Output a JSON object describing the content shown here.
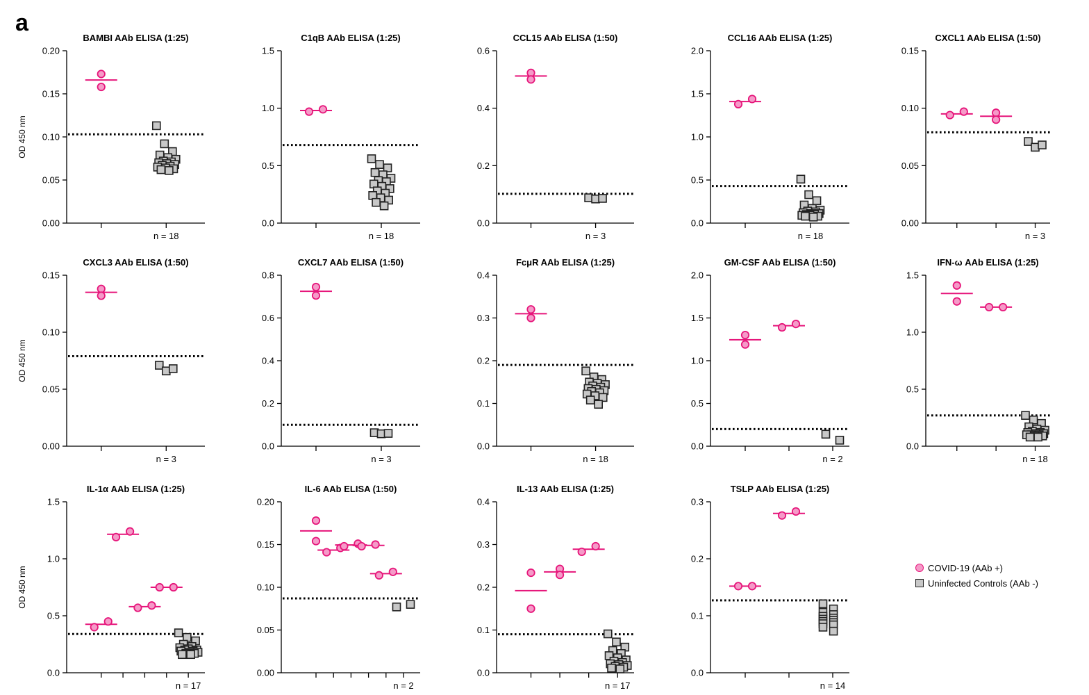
{
  "figure": {
    "panel_letter": "a"
  },
  "legend": {
    "covid_label": "COVID-19 (AAb +)",
    "control_label": "Uninfected Controls (AAb -)",
    "covid_color": "#e6157a",
    "covid_fill": "#f59ac8",
    "control_color": "#222222",
    "control_fill": "#c8c8c8"
  },
  "chart_data": [
    {
      "type": "scatter",
      "title": "BAMBI AAb ELISA (1:25)",
      "ylabel": "OD 450 nm",
      "ylim": [
        0,
        0.2
      ],
      "yticks": [
        "0.00",
        "0.05",
        "0.10",
        "0.15",
        "0.20"
      ],
      "xlabel": "n = 18",
      "threshold": 0.103,
      "groups": [
        {
          "kind": "covid",
          "points": [
            0.173,
            0.158
          ],
          "mean": 0.166
        }
      ],
      "controls": [
        0.113,
        0.092,
        0.083,
        0.079,
        0.076,
        0.074,
        0.072,
        0.071,
        0.07,
        0.069,
        0.068,
        0.067,
        0.066,
        0.065,
        0.064,
        0.063,
        0.062,
        0.061
      ]
    },
    {
      "type": "scatter",
      "title": "C1qB AAb ELISA (1:25)",
      "ylabel": "",
      "ylim": [
        0,
        1.5
      ],
      "yticks": [
        "0.0",
        "0.5",
        "1.0",
        "1.5"
      ],
      "xlabel": "n = 18",
      "threshold": 0.68,
      "groups": [
        {
          "kind": "covid",
          "points": [
            0.97,
            0.99
          ],
          "mean": 0.98,
          "pair": true
        }
      ],
      "controls": [
        0.56,
        0.51,
        0.48,
        0.44,
        0.42,
        0.39,
        0.37,
        0.36,
        0.34,
        0.32,
        0.3,
        0.28,
        0.26,
        0.24,
        0.22,
        0.2,
        0.18,
        0.15
      ]
    },
    {
      "type": "scatter",
      "title": "CCL15 AAb ELISA (1:50)",
      "ylabel": "",
      "ylim": [
        0,
        0.6
      ],
      "yticks": [
        "0.0",
        "0.2",
        "0.4",
        "0.6"
      ],
      "xlabel": "n = 3",
      "threshold": 0.102,
      "groups": [
        {
          "kind": "covid",
          "points": [
            0.523,
            0.5
          ],
          "mean": 0.512
        }
      ],
      "controls": [
        0.088,
        0.084,
        0.086
      ]
    },
    {
      "type": "scatter",
      "title": "CCL16 AAb ELISA (1:25)",
      "ylabel": "",
      "ylim": [
        0,
        2.0
      ],
      "yticks": [
        "0.0",
        "0.5",
        "1.0",
        "1.5",
        "2.0"
      ],
      "xlabel": "n = 18",
      "threshold": 0.43,
      "groups": [
        {
          "kind": "covid",
          "points": [
            1.38,
            1.44
          ],
          "mean": 1.41,
          "pair": true
        }
      ],
      "controls": [
        0.51,
        0.33,
        0.26,
        0.21,
        0.17,
        0.15,
        0.14,
        0.13,
        0.12,
        0.11,
        0.11,
        0.1,
        0.1,
        0.09,
        0.09,
        0.08,
        0.08,
        0.07
      ]
    },
    {
      "type": "scatter",
      "title": "CXCL1 AAb ELISA (1:50)",
      "ylabel": "",
      "ylim": [
        0,
        0.15
      ],
      "yticks": [
        "0.00",
        "0.05",
        "0.10",
        "0.15"
      ],
      "xlabel": "n = 3",
      "threshold": 0.079,
      "groups": [
        {
          "kind": "covid",
          "points": [
            0.094,
            0.097
          ],
          "mean": 0.095,
          "pair": true
        },
        {
          "kind": "covid",
          "points": [
            0.096,
            0.09
          ],
          "mean": 0.093
        }
      ],
      "controls": [
        0.071,
        0.066,
        0.068
      ]
    },
    {
      "type": "scatter",
      "title": "CXCL3 AAb ELISA (1:50)",
      "ylabel": "OD 450 nm",
      "ylim": [
        0,
        0.15
      ],
      "yticks": [
        "0.00",
        "0.05",
        "0.10",
        "0.15"
      ],
      "xlabel": "n = 3",
      "threshold": 0.079,
      "groups": [
        {
          "kind": "covid",
          "points": [
            0.138,
            0.132
          ],
          "mean": 0.135
        }
      ],
      "controls": [
        0.071,
        0.066,
        0.068
      ]
    },
    {
      "type": "scatter",
      "title": "CXCL7 AAb ELISA (1:50)",
      "ylabel": "",
      "ylim": [
        0,
        0.8
      ],
      "yticks": [
        "0.0",
        "0.2",
        "0.4",
        "0.6",
        "0.8"
      ],
      "xlabel": "n = 3",
      "threshold": 0.1,
      "groups": [
        {
          "kind": "covid",
          "points": [
            0.745,
            0.705
          ],
          "mean": 0.725
        }
      ],
      "controls": [
        0.063,
        0.058,
        0.06
      ]
    },
    {
      "type": "scatter",
      "title": "FcμR AAb ELISA (1:25)",
      "ylabel": "",
      "ylim": [
        0,
        0.4
      ],
      "yticks": [
        "0.0",
        "0.1",
        "0.2",
        "0.3",
        "0.4"
      ],
      "xlabel": "n = 18",
      "threshold": 0.19,
      "groups": [
        {
          "kind": "covid",
          "points": [
            0.32,
            0.3
          ],
          "mean": 0.31
        }
      ],
      "controls": [
        0.176,
        0.162,
        0.156,
        0.15,
        0.147,
        0.144,
        0.141,
        0.138,
        0.135,
        0.133,
        0.13,
        0.128,
        0.125,
        0.122,
        0.118,
        0.114,
        0.108,
        0.098
      ]
    },
    {
      "type": "scatter",
      "title": "GM-CSF AAb ELISA (1:50)",
      "ylabel": "",
      "ylim": [
        0,
        2.0
      ],
      "yticks": [
        "0.0",
        "0.5",
        "1.0",
        "1.5",
        "2.0"
      ],
      "xlabel": "n = 2",
      "threshold": 0.2,
      "groups": [
        {
          "kind": "covid",
          "points": [
            1.3,
            1.19
          ],
          "mean": 1.245
        },
        {
          "kind": "covid",
          "points": [
            1.39,
            1.43
          ],
          "mean": 1.41,
          "pair": true
        }
      ],
      "controls": [
        0.14,
        0.07
      ]
    },
    {
      "type": "scatter",
      "title": "IFN-ω AAb ELISA (1:25)",
      "ylabel": "",
      "ylim": [
        0,
        1.5
      ],
      "yticks": [
        "0.0",
        "0.5",
        "1.0",
        "1.5"
      ],
      "xlabel": "n = 18",
      "threshold": 0.27,
      "groups": [
        {
          "kind": "covid",
          "points": [
            1.41,
            1.27
          ],
          "mean": 1.34
        },
        {
          "kind": "covid",
          "points": [
            1.22,
            1.22
          ],
          "mean": 1.22,
          "pair": true
        }
      ],
      "controls": [
        0.27,
        0.23,
        0.2,
        0.17,
        0.15,
        0.14,
        0.13,
        0.12,
        0.12,
        0.11,
        0.11,
        0.1,
        0.1,
        0.1,
        0.09,
        0.09,
        0.08,
        0.08
      ]
    },
    {
      "type": "scatter",
      "title": "IL-1α AAb ELISA (1:25)",
      "ylabel": "OD 450 nm",
      "ylim": [
        0,
        1.5
      ],
      "yticks": [
        "0.0",
        "0.5",
        "1.0",
        "1.5"
      ],
      "xlabel": "n = 17",
      "threshold": 0.34,
      "groups": [
        {
          "kind": "covid",
          "points": [
            0.4,
            0.45
          ],
          "mean": 0.425,
          "pair": true
        },
        {
          "kind": "covid",
          "points": [
            1.19,
            1.24
          ],
          "mean": 1.215,
          "pair": true
        },
        {
          "kind": "covid",
          "points": [
            0.57,
            0.59
          ],
          "mean": 0.58,
          "pair": true
        },
        {
          "kind": "covid",
          "points": [
            0.75,
            0.75
          ],
          "mean": 0.75,
          "pair": true
        }
      ],
      "controls": [
        0.35,
        0.31,
        0.28,
        0.25,
        0.23,
        0.22,
        0.21,
        0.2,
        0.2,
        0.19,
        0.19,
        0.18,
        0.18,
        0.17,
        0.17,
        0.16,
        0.16
      ]
    },
    {
      "type": "scatter",
      "title": "IL-6 AAb ELISA (1:50)",
      "ylabel": "",
      "ylim": [
        0,
        0.2
      ],
      "yticks": [
        "0.00",
        "0.05",
        "0.10",
        "0.15",
        "0.20"
      ],
      "xlabel": "n = 2",
      "threshold": 0.087,
      "groups": [
        {
          "kind": "covid",
          "points": [
            0.178,
            0.154
          ],
          "mean": 0.166
        },
        {
          "kind": "covid",
          "points": [
            0.141,
            0.146
          ],
          "mean": 0.1435,
          "pair": true
        },
        {
          "kind": "covid",
          "points": [
            0.148,
            0.151
          ],
          "mean": 0.1495,
          "pair": true
        },
        {
          "kind": "covid",
          "points": [
            0.148,
            0.15
          ],
          "mean": 0.149,
          "pair": true
        },
        {
          "kind": "covid",
          "points": [
            0.114,
            0.118
          ],
          "mean": 0.116,
          "pair": true
        }
      ],
      "controls": [
        0.077,
        0.08
      ]
    },
    {
      "type": "scatter",
      "title": "IL-13 AAb ELISA (1:25)",
      "ylabel": "",
      "ylim": [
        0,
        0.4
      ],
      "yticks": [
        "0.0",
        "0.1",
        "0.2",
        "0.3",
        "0.4"
      ],
      "xlabel": "n = 17",
      "threshold": 0.09,
      "groups": [
        {
          "kind": "covid",
          "points": [
            0.234,
            0.15
          ],
          "mean": 0.192
        },
        {
          "kind": "covid",
          "points": [
            0.243,
            0.229
          ],
          "mean": 0.236
        },
        {
          "kind": "covid",
          "points": [
            0.283,
            0.296
          ],
          "mean": 0.289,
          "pair": true
        }
      ],
      "controls": [
        0.091,
        0.072,
        0.06,
        0.052,
        0.045,
        0.04,
        0.035,
        0.03,
        0.027,
        0.024,
        0.021,
        0.019,
        0.017,
        0.015,
        0.013,
        0.011,
        0.009
      ]
    },
    {
      "type": "scatter",
      "title": "TSLP AAb ELISA (1:25)",
      "ylabel": "",
      "ylim": [
        0,
        0.3
      ],
      "yticks": [
        "0.0",
        "0.1",
        "0.2",
        "0.3"
      ],
      "xlabel": "n = 14",
      "threshold": 0.127,
      "groups": [
        {
          "kind": "covid",
          "points": [
            0.152,
            0.152
          ],
          "mean": 0.152,
          "pair": true
        },
        {
          "kind": "covid",
          "points": [
            0.276,
            0.283
          ],
          "mean": 0.2795,
          "pair": true
        }
      ],
      "controls": [
        0.121,
        0.112,
        0.106,
        0.102,
        0.099,
        0.096,
        0.094,
        0.092,
        0.09,
        0.088,
        0.086,
        0.084,
        0.08,
        0.073
      ]
    }
  ]
}
